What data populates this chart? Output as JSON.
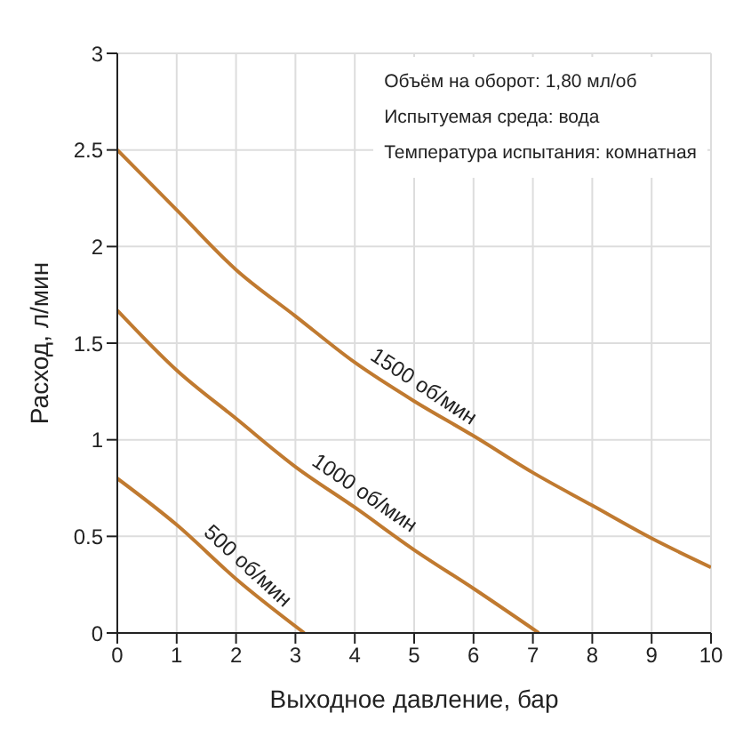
{
  "chart_data": {
    "type": "line",
    "xlabel": "Выходное давление, бар",
    "ylabel": "Расход, л/мин",
    "xlim": [
      0,
      10
    ],
    "ylim": [
      0,
      3
    ],
    "xticks": [
      0,
      1,
      2,
      3,
      4,
      5,
      6,
      7,
      8,
      9,
      10
    ],
    "yticks": [
      0,
      0.5,
      1,
      1.5,
      2,
      2.5,
      3
    ],
    "grid": true,
    "marker": "none",
    "line_style": "solid",
    "annotations": [
      "Объём на оборот: 1,80 мл/об",
      "Испытуемая среда: вода",
      "Температура испытания: комнатная"
    ],
    "series": [
      {
        "name": "1500 об/мин",
        "color": "#c07a30",
        "x": [
          0,
          1,
          2,
          3,
          4,
          5,
          6,
          7,
          8,
          9,
          10
        ],
        "values": [
          2.5,
          2.19,
          1.88,
          1.64,
          1.4,
          1.2,
          1.02,
          0.83,
          0.66,
          0.49,
          0.34
        ]
      },
      {
        "name": "1000 об/мин",
        "color": "#c07a30",
        "x": [
          0,
          1,
          2,
          3,
          4,
          5,
          6,
          7.1
        ],
        "values": [
          1.67,
          1.36,
          1.11,
          0.86,
          0.65,
          0.43,
          0.23,
          0
        ]
      },
      {
        "name": "500 об/мин",
        "color": "#c07a30",
        "x": [
          0,
          1,
          2,
          3.15
        ],
        "values": [
          0.8,
          0.56,
          0.28,
          0
        ]
      }
    ]
  }
}
